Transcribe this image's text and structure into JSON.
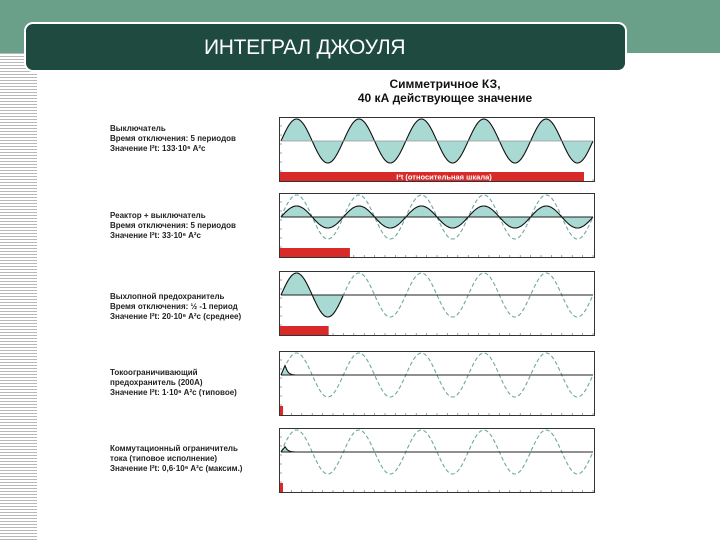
{
  "slide": {
    "title": "ИНТЕГРАЛ ДЖОУЛЯ",
    "colors": {
      "band": "#6a9f89",
      "title_box": "#1f4a3f",
      "fill": "#a8d9d3",
      "dashed": "#6fa8a0",
      "bar": "#d92a2a"
    }
  },
  "chart_title": {
    "line1": "Симметричное КЗ,",
    "line2": "40 кА действующее значение"
  },
  "rows": [
    {
      "line1": "Выключатель",
      "line2": "Время отключения: 5 периодов",
      "line3": "Значение I²t: 133·10⁶  A²c",
      "bar_label": "I²t (относительная шкала)"
    },
    {
      "line1": "Реактор + выключатель",
      "line2": "Время отключения: 5 периодов",
      "line3": "Значение I²t: 33·10⁶  A²c"
    },
    {
      "line1": "Выхлопной предохранитель",
      "line2": "Время отключения: ½ -1 период",
      "line3": "Значение I²t: 20·10⁶  A²c (среднее)"
    },
    {
      "line1": "Токоограничивающий",
      "line2": "предохранитель (200А)",
      "line3": "Значение I²t: 1·10⁶  A²c (типовое)"
    },
    {
      "line1": "Коммутационный ограничитель",
      "line2": "тока (типовое исполнение)",
      "line3": "Значение I²t: 0,6·10⁶  A²c (максим.)"
    }
  ],
  "chart_data": [
    {
      "type": "area",
      "title": "Выключатель",
      "cycles_shown": 5,
      "solid_amplitude": 1.0,
      "dashed_amplitude": null,
      "conduction_cycles": 5,
      "i2t_value": 133000000.0,
      "i2t_unit": "A²c",
      "bar_relative_length": 1.0
    },
    {
      "type": "area",
      "title": "Реактор + выключатель",
      "cycles_shown": 5,
      "solid_amplitude": 0.5,
      "dashed_amplitude": 1.0,
      "conduction_cycles": 5,
      "i2t_value": 33000000.0,
      "i2t_unit": "A²c",
      "bar_relative_length": 0.23
    },
    {
      "type": "area",
      "title": "Выхлопной предохранитель",
      "cycles_shown": 5,
      "solid_amplitude": 1.0,
      "dashed_amplitude": 1.0,
      "conduction_cycles": 1,
      "i2t_value": 20000000.0,
      "i2t_unit": "A²c",
      "bar_relative_length": 0.16
    },
    {
      "type": "area",
      "title": "Токоограничивающий предохранитель (200А)",
      "cycles_shown": 5,
      "solid_peak": 0.45,
      "dashed_amplitude": 1.0,
      "conduction_cycles": 0.15,
      "i2t_value": 1000000.0,
      "i2t_unit": "A²c",
      "bar_relative_length": 0.01
    },
    {
      "type": "area",
      "title": "Коммутационный ограничитель тока (типовое исполнение)",
      "cycles_shown": 5,
      "solid_peak": 0.25,
      "dashed_amplitude": 1.0,
      "conduction_cycles": 0.15,
      "i2t_value": 600000.0,
      "i2t_unit": "A²c",
      "bar_relative_length": 0.005
    }
  ]
}
